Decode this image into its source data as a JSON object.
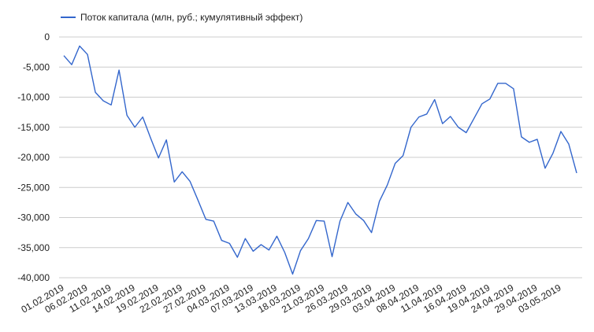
{
  "colors": {
    "series": "#3366cc",
    "grid": "#cccccc",
    "text": "#222222"
  },
  "chart_data": {
    "type": "line",
    "title": "",
    "xlabel": "",
    "ylabel": "",
    "legend_position": "top-left",
    "grid": true,
    "ylim": [
      -40000,
      0
    ],
    "y_ticks": [
      0,
      -5000,
      -10000,
      -15000,
      -20000,
      -25000,
      -30000,
      -35000,
      -40000
    ],
    "y_tick_labels": [
      "0",
      "-5,000",
      "-10,000",
      "-15,000",
      "-20,000",
      "-25,000",
      "-30,000",
      "-35,000",
      "-40,000"
    ],
    "x_tick_labels": [
      "01.02.2019",
      "06.02.2019",
      "11.02.2019",
      "14.02.2019",
      "19.02.2019",
      "22.02.2019",
      "27.02.2019",
      "04.03.2019",
      "07.03.2019",
      "13.03.2019",
      "18.03.2019",
      "21.03.2019",
      "26.03.2019",
      "29.03.2019",
      "03.04.2019",
      "08.04.2019",
      "11.04.2019",
      "16.04.2019",
      "19.04.2019",
      "24.04.2019",
      "29.04.2019",
      "03.05.2019"
    ],
    "series": [
      {
        "name": "Поток капитала (млн, руб.; кумулятивный эффект)",
        "values": [
          -3100,
          -4600,
          -1500,
          -2900,
          -9200,
          -10600,
          -11300,
          -5500,
          -13000,
          -15000,
          -13300,
          -16800,
          -20100,
          -17100,
          -24100,
          -22400,
          -24000,
          -27100,
          -30300,
          -30600,
          -33800,
          -34300,
          -36600,
          -33500,
          -35600,
          -34500,
          -35400,
          -33100,
          -35800,
          -39400,
          -35500,
          -33500,
          -30500,
          -30600,
          -36500,
          -30600,
          -27500,
          -29400,
          -30500,
          -32500,
          -27300,
          -24600,
          -21000,
          -19700,
          -15000,
          -13300,
          -12800,
          -10400,
          -14400,
          -13200,
          -15000,
          -15900,
          -13500,
          -11100,
          -10300,
          -7700,
          -7700,
          -8600,
          -16600,
          -17500,
          -17000,
          -21800,
          -19300,
          -15700,
          -17800,
          -22600
        ]
      }
    ]
  }
}
